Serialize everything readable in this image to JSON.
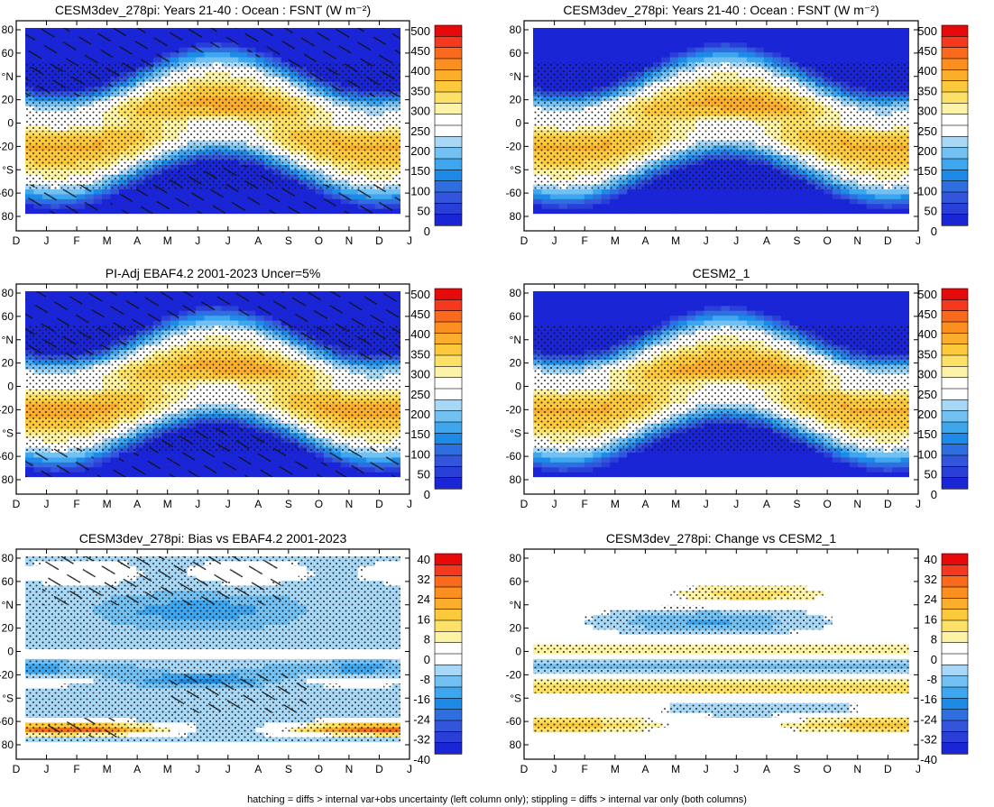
{
  "chart_data": [
    {
      "id": "p1",
      "type": "heatmap",
      "title": "CESM3dev_278pi: Years 21-40 : Ocean : FSNT (W m⁻²)",
      "field": "fsnt",
      "hatching": "fsnt",
      "stipple": true,
      "colorbar": {
        "levels": [
          "500",
          "450",
          "400",
          "350",
          "300",
          "250",
          "200",
          "150",
          "100",
          "50",
          "0"
        ],
        "colors": [
          "#e60a0a",
          "#f4391f",
          "#f96a1d",
          "#fb8f1f",
          "#fbad2c",
          "#fcc93d",
          "#fde167",
          "#fdf3a6",
          "#ffffff",
          "#ffffff",
          "#a8d8f5",
          "#73c1f2",
          "#3ea6ee",
          "#1e8ae8",
          "#2f6ee0",
          "#3355db",
          "#2a3ed8",
          "#1a25d6"
        ]
      }
    },
    {
      "id": "p2",
      "type": "heatmap",
      "title": "CESM3dev_278pi: Years 21-40 : Ocean : FSNT (W m⁻²)",
      "field": "fsnt",
      "hatching": "none",
      "stipple": true,
      "colorbar": {
        "levels": [
          "500",
          "450",
          "400",
          "350",
          "300",
          "250",
          "200",
          "150",
          "100",
          "50",
          "0"
        ],
        "colors": [
          "#e60a0a",
          "#f4391f",
          "#f96a1d",
          "#fb8f1f",
          "#fbad2c",
          "#fcc93d",
          "#fde167",
          "#fdf3a6",
          "#ffffff",
          "#ffffff",
          "#a8d8f5",
          "#73c1f2",
          "#3ea6ee",
          "#1e8ae8",
          "#2f6ee0",
          "#3355db",
          "#2a3ed8",
          "#1a25d6"
        ]
      }
    },
    {
      "id": "p3",
      "type": "heatmap",
      "title": "PI-Adj EBAF4.2 2001-2023 Uncer=5%",
      "field": "fsnt",
      "hatching": "fsnt",
      "stipple": true,
      "colorbar": {
        "levels": [
          "500",
          "450",
          "400",
          "350",
          "300",
          "250",
          "200",
          "150",
          "100",
          "50",
          "0"
        ],
        "colors": [
          "#e60a0a",
          "#f4391f",
          "#f96a1d",
          "#fb8f1f",
          "#fbad2c",
          "#fcc93d",
          "#fde167",
          "#fdf3a6",
          "#ffffff",
          "#ffffff",
          "#a8d8f5",
          "#73c1f2",
          "#3ea6ee",
          "#1e8ae8",
          "#2f6ee0",
          "#3355db",
          "#2a3ed8",
          "#1a25d6"
        ]
      }
    },
    {
      "id": "p4",
      "type": "heatmap",
      "title": "CESM2_1",
      "field": "fsnt",
      "hatching": "none",
      "stipple": true,
      "colorbar": {
        "levels": [
          "500",
          "450",
          "400",
          "350",
          "300",
          "250",
          "200",
          "150",
          "100",
          "50",
          "0"
        ],
        "colors": [
          "#e60a0a",
          "#f4391f",
          "#f96a1d",
          "#fb8f1f",
          "#fbad2c",
          "#fcc93d",
          "#fde167",
          "#fdf3a6",
          "#ffffff",
          "#ffffff",
          "#a8d8f5",
          "#73c1f2",
          "#3ea6ee",
          "#1e8ae8",
          "#2f6ee0",
          "#3355db",
          "#2a3ed8",
          "#1a25d6"
        ]
      }
    },
    {
      "id": "p5",
      "type": "heatmap",
      "title": "CESM3dev_278pi: Bias vs EBAF4.2 2001-2023",
      "field": "bias",
      "hatching": "bias",
      "stipple": true,
      "colorbar": {
        "levels": [
          "40",
          "32",
          "24",
          "16",
          "8",
          "0",
          "-8",
          "-16",
          "-24",
          "-32",
          "-40"
        ],
        "colors": [
          "#e60a0a",
          "#f4391f",
          "#f96a1d",
          "#fb8f1f",
          "#fbad2c",
          "#fcc93d",
          "#fde167",
          "#fdf3a6",
          "#ffffff",
          "#ffffff",
          "#a8d8f5",
          "#73c1f2",
          "#3ea6ee",
          "#1e8ae8",
          "#2f6ee0",
          "#3355db",
          "#2a3ed8",
          "#1a25d6"
        ]
      }
    },
    {
      "id": "p6",
      "type": "heatmap",
      "title": "CESM3dev_278pi: Change vs CESM2_1",
      "field": "change",
      "hatching": "none",
      "stipple": true,
      "colorbar": {
        "levels": [
          "40",
          "32",
          "24",
          "16",
          "8",
          "0",
          "-8",
          "-16",
          "-24",
          "-32",
          "-40"
        ],
        "colors": [
          "#e60a0a",
          "#f4391f",
          "#f96a1d",
          "#fb8f1f",
          "#fbad2c",
          "#fcc93d",
          "#fde167",
          "#fdf3a6",
          "#ffffff",
          "#ffffff",
          "#a8d8f5",
          "#73c1f2",
          "#3ea6ee",
          "#1e8ae8",
          "#2f6ee0",
          "#3355db",
          "#2a3ed8",
          "#1a25d6"
        ]
      }
    }
  ],
  "axes": {
    "x_ticks": [
      "D",
      "J",
      "F",
      "M",
      "A",
      "M",
      "J",
      "J",
      "A",
      "S",
      "O",
      "N",
      "D",
      "J"
    ],
    "y_ticks": [
      "80",
      "60",
      "°N",
      "20",
      "0",
      "-20",
      "°S",
      "-60",
      "80"
    ],
    "ylim": [
      -90,
      90
    ]
  },
  "caption": "hatching = diffs > internal var+obs uncertainty (left column only); stippling = diffs > internal var only (both columns)"
}
